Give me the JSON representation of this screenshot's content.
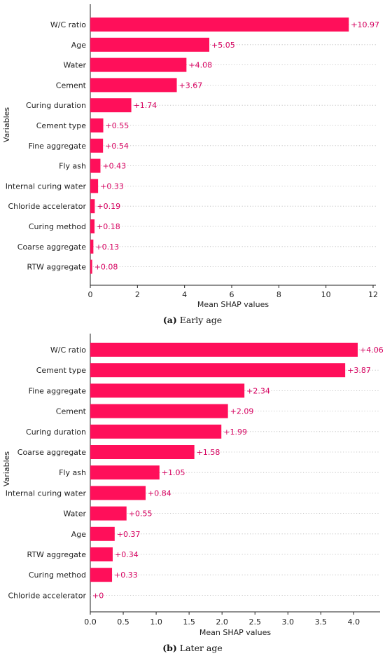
{
  "colors": {
    "bar": "#ff0f5a",
    "value_label": "#d6005f"
  },
  "chart_data": [
    {
      "type": "bar",
      "orientation": "horizontal",
      "caption_letter": "(a)",
      "caption_text": "Early age",
      "xlabel": "Mean SHAP values",
      "ylabel": "Variables",
      "xlim": [
        0,
        12
      ],
      "xticks": [
        "0",
        "2",
        "4",
        "6",
        "8",
        "10",
        "12"
      ],
      "grid": "horizontal dotted",
      "categories": [
        "W/C ratio",
        "Age",
        "Water",
        "Cement",
        "Curing duration",
        "Cement type",
        "Fine aggregate",
        "Fly ash",
        "Internal curing water",
        "Chloride accelerator",
        "Curing method",
        "Coarse aggregate",
        "RTW aggregate"
      ],
      "values": [
        10.97,
        5.05,
        4.08,
        3.67,
        1.74,
        0.55,
        0.54,
        0.43,
        0.33,
        0.19,
        0.18,
        0.13,
        0.08
      ],
      "value_labels": [
        "+10.97",
        "+5.05",
        "+4.08",
        "+3.67",
        "+1.74",
        "+0.55",
        "+0.54",
        "+0.43",
        "+0.33",
        "+0.19",
        "+0.18",
        "+0.13",
        "+0.08"
      ]
    },
    {
      "type": "bar",
      "orientation": "horizontal",
      "caption_letter": "(b)",
      "caption_text": "Later age",
      "xlabel": "Mean SHAP values",
      "ylabel": "Variables",
      "xlim": [
        0,
        4.4
      ],
      "xticks": [
        "0.0",
        "0.5",
        "1.0",
        "1.5",
        "2.0",
        "2.5",
        "3.0",
        "3.5",
        "4.0"
      ],
      "grid": "horizontal dotted",
      "categories": [
        "W/C ratio",
        "Cement type",
        "Fine aggregate",
        "Cement",
        "Curing duration",
        "Coarse aggregate",
        "Fly ash",
        "Internal curing water",
        "Water",
        "Age",
        "RTW aggregate",
        "Curing method",
        "Chloride accelerator"
      ],
      "values": [
        4.06,
        3.87,
        2.34,
        2.09,
        1.99,
        1.58,
        1.05,
        0.84,
        0.55,
        0.37,
        0.34,
        0.33,
        0
      ],
      "value_labels": [
        "+4.06",
        "+3.87",
        "+2.34",
        "+2.09",
        "+1.99",
        "+1.58",
        "+1.05",
        "+0.84",
        "+0.55",
        "+0.37",
        "+0.34",
        "+0.33",
        "+0"
      ]
    }
  ]
}
